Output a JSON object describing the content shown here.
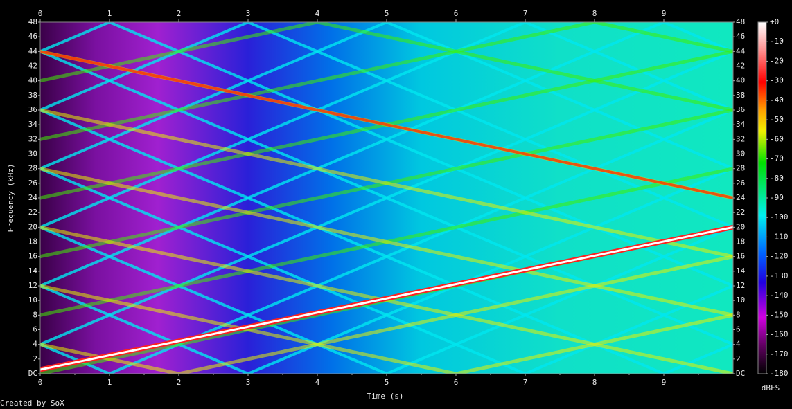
{
  "chart_data": {
    "type": "spectrogram",
    "xlabel": "Time (s)",
    "ylabel": "Frequency (kHz)",
    "xlim": [
      0,
      10
    ],
    "xticks": [
      0,
      1,
      2,
      3,
      4,
      5,
      6,
      7,
      8,
      9
    ],
    "ylim": [
      0,
      48
    ],
    "yticks": [
      {
        "value": 0,
        "label": "DC"
      },
      2,
      4,
      6,
      8,
      10,
      12,
      14,
      16,
      18,
      20,
      22,
      24,
      26,
      28,
      30,
      32,
      34,
      36,
      38,
      40,
      42,
      44,
      46,
      48
    ],
    "colorbar": {
      "label": "dBFS",
      "lim": [
        -180,
        0
      ],
      "ticks": [
        {
          "value": 0,
          "label": "+0"
        },
        -10,
        -20,
        -30,
        -40,
        -50,
        -60,
        -70,
        -80,
        -90,
        -100,
        -110,
        -120,
        -130,
        -140,
        -150,
        -160,
        -170,
        -180
      ]
    },
    "credit": "Created by SoX"
  }
}
